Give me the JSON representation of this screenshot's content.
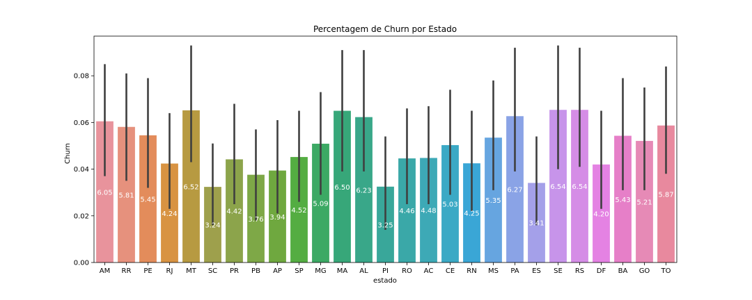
{
  "chart_data": {
    "type": "bar",
    "title": "Percentagem de Churn por Estado",
    "xlabel": "estado",
    "ylabel": "Churn",
    "ylim": [
      0,
      0.097
    ],
    "yticks": [
      "0.00",
      "0.02",
      "0.04",
      "0.06",
      "0.08"
    ],
    "ytick_values": [
      0,
      0.02,
      0.04,
      0.06,
      0.08
    ],
    "grid": false,
    "legend": "none",
    "error_bar_color": "#3f3f3f",
    "categories": [
      "AM",
      "RR",
      "PE",
      "RJ",
      "MT",
      "SC",
      "PR",
      "PB",
      "AP",
      "SP",
      "MG",
      "MA",
      "AL",
      "PI",
      "RO",
      "AC",
      "CE",
      "RN",
      "MS",
      "PA",
      "ES",
      "SE",
      "RS",
      "DF",
      "BA",
      "GO",
      "TO"
    ],
    "values": [
      0.0605,
      0.0581,
      0.0545,
      0.0424,
      0.0652,
      0.0324,
      0.0442,
      0.0376,
      0.0394,
      0.0452,
      0.0509,
      0.065,
      0.0623,
      0.0325,
      0.0446,
      0.0448,
      0.0503,
      0.0425,
      0.0535,
      0.0627,
      0.0341,
      0.0654,
      0.0654,
      0.042,
      0.0543,
      0.0521,
      0.0587
    ],
    "data_labels": [
      "6.05",
      "5.81",
      "5.45",
      "4.24",
      "6.52",
      "3.24",
      "4.42",
      "3.76",
      "3.94",
      "4.52",
      "5.09",
      "6.50",
      "6.23",
      "3.25",
      "4.46",
      "4.48",
      "5.03",
      "4.25",
      "5.35",
      "6.27",
      "3.41",
      "6.54",
      "6.54",
      "4.20",
      "5.43",
      "5.21",
      "5.87"
    ],
    "ci_low": [
      0.037,
      0.035,
      0.032,
      0.023,
      0.043,
      0.016,
      0.025,
      0.018,
      0.021,
      0.026,
      0.029,
      0.039,
      0.039,
      0.014,
      0.025,
      0.025,
      0.029,
      0.022,
      0.031,
      0.039,
      0.016,
      0.04,
      0.041,
      0.023,
      0.031,
      0.031,
      0.038
    ],
    "ci_high": [
      0.085,
      0.081,
      0.079,
      0.064,
      0.093,
      0.051,
      0.068,
      0.057,
      0.061,
      0.065,
      0.073,
      0.091,
      0.091,
      0.054,
      0.066,
      0.067,
      0.074,
      0.065,
      0.078,
      0.092,
      0.054,
      0.093,
      0.092,
      0.065,
      0.079,
      0.075,
      0.084
    ],
    "colors": [
      "#e8939c",
      "#e6917d",
      "#e38c5b",
      "#d89342",
      "#b79a41",
      "#9ea04c",
      "#8ca44b",
      "#7ea847",
      "#6fa83f",
      "#54ad42",
      "#3ca964",
      "#37a779",
      "#39a789",
      "#39a79a",
      "#3aa8a8",
      "#3da9b6",
      "#3ba9c5",
      "#3aa6d6",
      "#66a5e0",
      "#8aa3e6",
      "#a4a0e9",
      "#c794ea",
      "#d58de6",
      "#e482e3",
      "#e67fc8",
      "#e68ab6",
      "#e8899e"
    ]
  }
}
